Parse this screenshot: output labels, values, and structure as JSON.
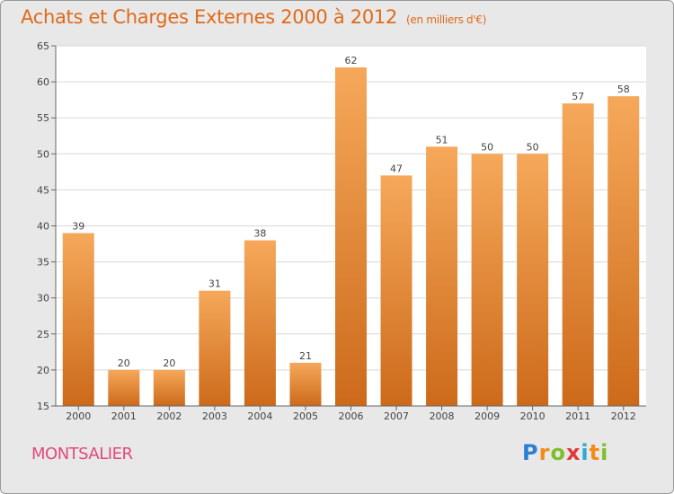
{
  "header": {
    "title": "Achats et Charges Externes 2000 à 2012",
    "unit": "(en milliers d'€)"
  },
  "footer": {
    "commune": "MONTSALIER",
    "brand": [
      "P",
      "r",
      "o",
      "x",
      "i",
      "t",
      "i"
    ]
  },
  "colors": {
    "title": "#e06a1a",
    "commune": "#e04a7a",
    "bar_top": "#f6a85a",
    "bar_bottom": "#cc6a1a",
    "plot_bg": "#ffffff",
    "grid": "#d8d8d8",
    "brand": [
      "#2a7fd4",
      "#f28c1a",
      "#7fbf2a",
      "#e03a3a",
      "#2aa8d8",
      "#f28c1a",
      "#7fbf2a"
    ]
  },
  "chart_data": {
    "type": "bar",
    "categories": [
      "2000",
      "2001",
      "2002",
      "2003",
      "2004",
      "2005",
      "2006",
      "2007",
      "2008",
      "2009",
      "2010",
      "2011",
      "2012"
    ],
    "values": [
      39,
      20,
      20,
      31,
      38,
      21,
      62,
      47,
      51,
      50,
      50,
      57,
      58
    ],
    "title": "Achats et Charges Externes 2000 à 2012",
    "ylim": [
      15,
      65
    ],
    "yticks": [
      15,
      20,
      25,
      30,
      35,
      40,
      45,
      50,
      55,
      60,
      65
    ],
    "grid": true,
    "data_labels": true
  }
}
